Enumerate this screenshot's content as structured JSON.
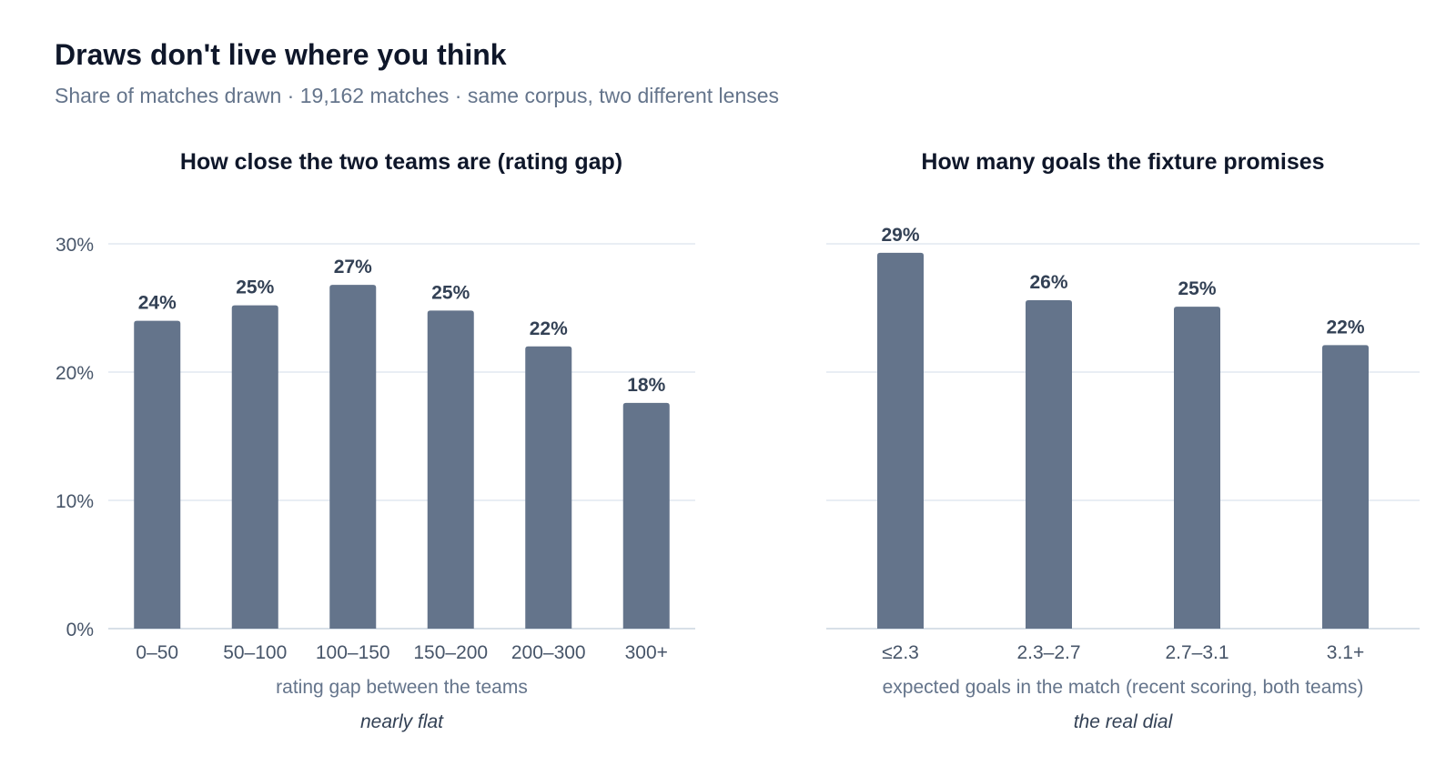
{
  "header": {
    "title": "Draws don't live where you think",
    "subtitle": "Share of matches drawn · 19,162 matches · same corpus, two different lenses"
  },
  "colors": {
    "bar": "#64748b",
    "grid": "#e2e8f0",
    "axis_line": "#cbd5e1",
    "tick_text": "#475569",
    "title_text": "#0f172a",
    "value_label": "#334155",
    "xlabel_text": "#64748b"
  },
  "chart_data": [
    {
      "type": "bar",
      "title": "How close the two teams are (rating gap)",
      "categories": [
        "0–50",
        "50–100",
        "100–150",
        "150–200",
        "200–300",
        "300+"
      ],
      "values": [
        24,
        25.2,
        26.8,
        24.8,
        22,
        17.6
      ],
      "value_labels": [
        "24%",
        "25%",
        "27%",
        "25%",
        "22%",
        "18%"
      ],
      "xlabel": "rating gap between the teams",
      "annotation": "nearly flat",
      "ylabel": "",
      "ylim": [
        0,
        30
      ],
      "yticks": [
        0,
        10,
        20,
        30
      ],
      "ytick_labels": [
        "0%",
        "10%",
        "20%",
        "30%"
      ],
      "grid": true,
      "show_y_axis_labels": true
    },
    {
      "type": "bar",
      "title": "How many goals the fixture promises",
      "categories": [
        "≤2.3",
        "2.3–2.7",
        "2.7–3.1",
        "3.1+"
      ],
      "values": [
        29.3,
        25.6,
        25.1,
        22.1
      ],
      "value_labels": [
        "29%",
        "26%",
        "25%",
        "22%"
      ],
      "xlabel": "expected goals in the match (recent scoring, both teams)",
      "annotation": "the real dial",
      "ylabel": "",
      "ylim": [
        0,
        30
      ],
      "yticks": [
        0,
        10,
        20,
        30
      ],
      "ytick_labels": [
        "0%",
        "10%",
        "20%",
        "30%"
      ],
      "grid": true,
      "show_y_axis_labels": false
    }
  ]
}
